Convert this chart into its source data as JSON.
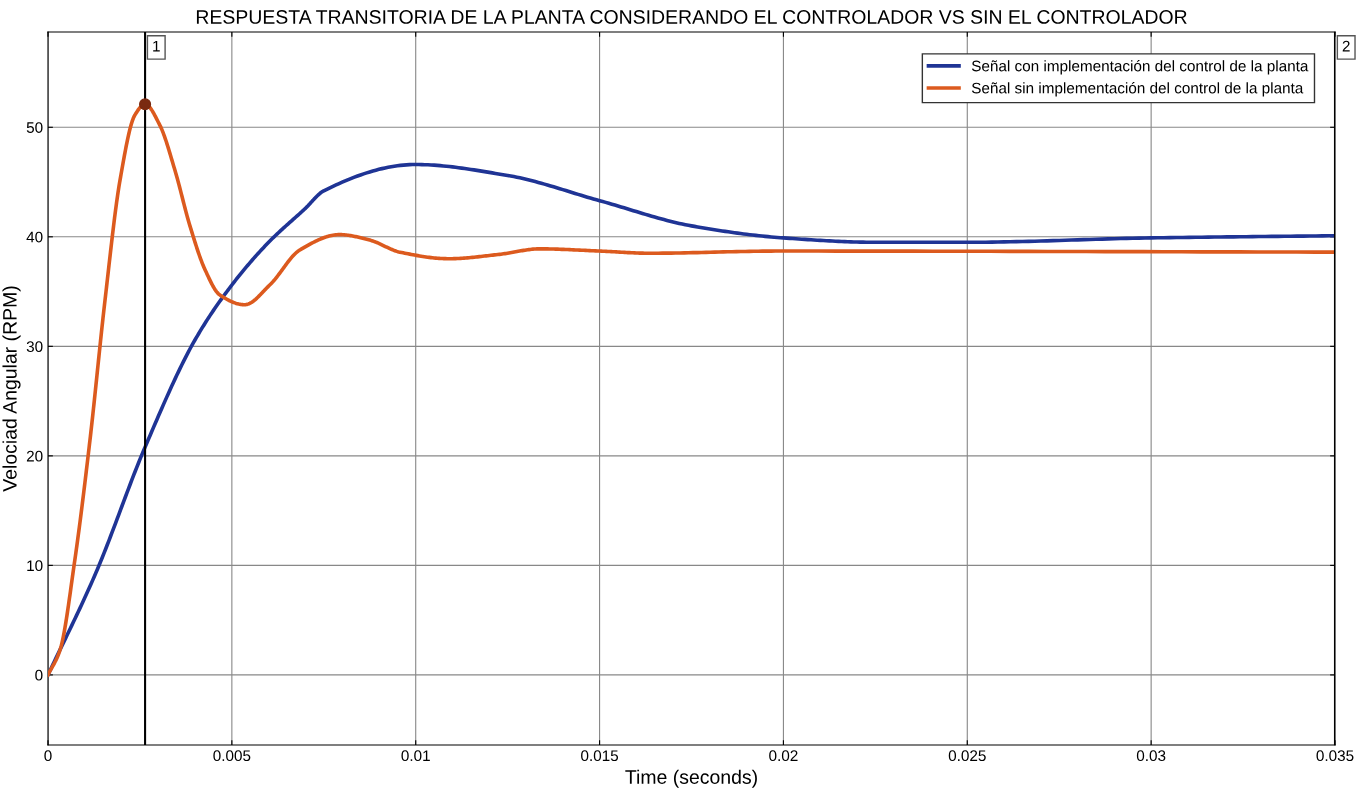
{
  "chart_data": {
    "type": "line",
    "title": "RESPUESTA TRANSITORIA DE LA PLANTA CONSIDERANDO EL CONTROLADOR VS SIN EL CONTROLADOR",
    "xlabel": "Time (seconds)",
    "ylabel": "Velociad Angular (RPM)",
    "xlim": [
      0,
      0.035
    ],
    "xticks": [
      0,
      0.005,
      0.01,
      0.015,
      0.02,
      0.025,
      0.03,
      0.035
    ],
    "ylim": [
      -6.4,
      58.7
    ],
    "yticks": [
      0,
      10,
      20,
      30,
      40,
      50
    ],
    "grid": true,
    "legend": "top right",
    "marker": "none",
    "line_style": "solid",
    "series": [
      {
        "name": "Señal con implementación del control de la planta",
        "color": "#1f3495",
        "x": [
          0,
          0.0013,
          0.00264,
          0.004,
          0.005,
          0.006,
          0.007,
          0.0075,
          0.01,
          0.0125,
          0.015,
          0.0175,
          0.02,
          0.0225,
          0.025,
          0.03,
          0.035
        ],
        "values": [
          0,
          9.3,
          20.8,
          30.6,
          35.6,
          39.5,
          42.6,
          44.2,
          46.6,
          45.6,
          43.3,
          41,
          39.9,
          39.5,
          39.5,
          39.9,
          40.1
        ]
      },
      {
        "name": "Señal sin implementación del control de la planta",
        "color": "#dc5a1e",
        "x": [
          0,
          0.00033,
          0.00073,
          0.00114,
          0.00155,
          0.00196,
          0.00236,
          0.00264,
          0.00304,
          0.00345,
          0.00386,
          0.00427,
          0.00467,
          0.00535,
          0.00603,
          0.00685,
          0.00793,
          0.00875,
          0.00957,
          0.0109,
          0.01228,
          0.01337,
          0.015,
          0.01636,
          0.0199,
          0.035
        ],
        "values": [
          0,
          2.3,
          10.5,
          21.4,
          34.2,
          45.2,
          51.1,
          52.1,
          50.2,
          46.1,
          41,
          37,
          34.7,
          33.8,
          35.6,
          38.8,
          40.2,
          39.7,
          38.6,
          38.0,
          38.4,
          38.9,
          38.7,
          38.5,
          38.7,
          38.6
        ]
      },
      {
        "type": "scatter",
        "color": "#7a2a10",
        "x": [
          0.00264
        ],
        "values": [
          52.1
        ],
        "marker": "circle"
      }
    ],
    "ref_lines": [
      {
        "axis": "x",
        "value": 0.00264,
        "color": "#000000"
      },
      {
        "axis": "x",
        "value": 0.035,
        "color": "#000000"
      }
    ],
    "annotations": [
      {
        "text": "1",
        "x": 0.00264
      },
      {
        "text": "2",
        "x": 0.035
      }
    ]
  }
}
